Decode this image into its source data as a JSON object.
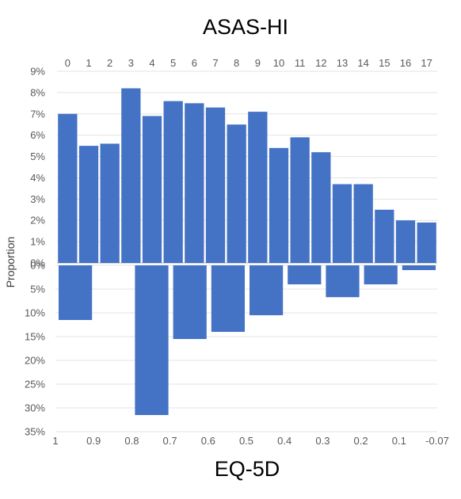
{
  "chart_data": [
    {
      "type": "bar",
      "title": "ASAS-HI",
      "xlabel": "",
      "ylabel": "",
      "categories": [
        "0",
        "1",
        "2",
        "3",
        "4",
        "5",
        "6",
        "7",
        "8",
        "9",
        "10",
        "11",
        "12",
        "13",
        "14",
        "15",
        "16",
        "17"
      ],
      "values": [
        7.0,
        5.5,
        5.6,
        8.2,
        6.9,
        7.6,
        7.5,
        7.3,
        6.5,
        7.1,
        5.4,
        5.9,
        5.2,
        3.7,
        3.7,
        2.5,
        2.0,
        1.9
      ],
      "ylim": [
        0,
        9
      ],
      "yticks": [
        "0%",
        "1%",
        "2%",
        "3%",
        "4%",
        "5%",
        "6%",
        "7%",
        "8%",
        "9%"
      ],
      "grid": true,
      "color": "#4472C4"
    },
    {
      "type": "bar",
      "title": "",
      "xlabel": "EQ-5D",
      "ylabel": "Proportion",
      "x_ticks": [
        "1",
        "0.9",
        "0.8",
        "0.7",
        "0.6",
        "0.5",
        "0.4",
        "0.3",
        "0.2",
        "0.1",
        "-0.07"
      ],
      "bins": [
        {
          "from": "1",
          "to": "0.9",
          "value": 11.5
        },
        {
          "from": "0.8",
          "to": "0.7",
          "value": 31.5
        },
        {
          "from": "0.7",
          "to": "0.6",
          "value": 15.5
        },
        {
          "from": "0.6",
          "to": "0.5",
          "value": 14.0
        },
        {
          "from": "0.5",
          "to": "0.4",
          "value": 10.5
        },
        {
          "from": "0.4",
          "to": "0.3",
          "value": 4.0
        },
        {
          "from": "0.3",
          "to": "0.2",
          "value": 6.7
        },
        {
          "from": "0.2",
          "to": "0.1",
          "value": 4.0
        },
        {
          "from": "0.1",
          "to": "-0.07",
          "value": 1.0
        }
      ],
      "ylim": [
        0,
        35
      ],
      "yticks": [
        "0%",
        "5%",
        "10%",
        "15%",
        "20%",
        "25%",
        "30%",
        "35%"
      ],
      "inverted": true,
      "grid": true,
      "color": "#4472C4"
    }
  ]
}
